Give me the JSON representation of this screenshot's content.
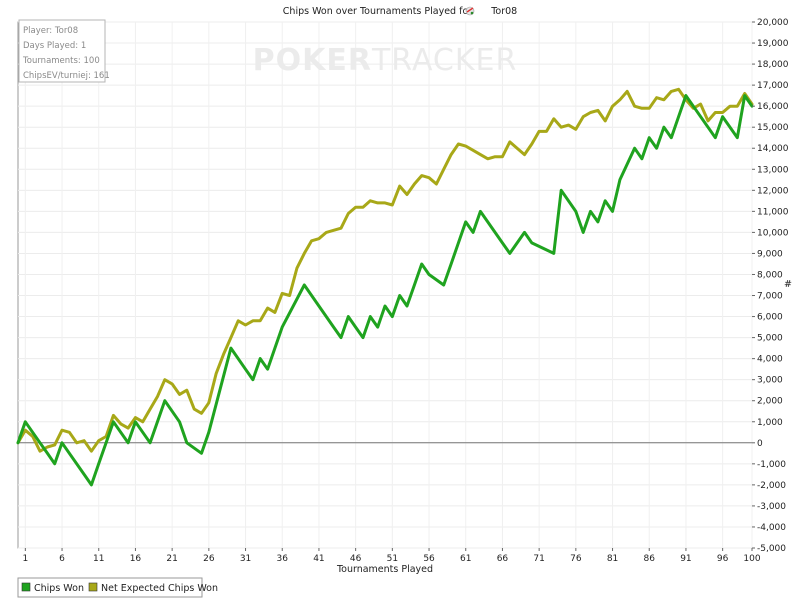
{
  "chart_data": {
    "type": "line",
    "title": "Chips Won over Tournaments Played for",
    "player_name": "Tor08",
    "watermark": {
      "bold": "POKER",
      "light": "TRACKER"
    },
    "xlabel": "Tournaments Played",
    "ylabel": "#",
    "xlim": [
      0,
      100
    ],
    "ylim": [
      -5000,
      20000
    ],
    "yticks": [
      -5000,
      -4000,
      -3000,
      -2000,
      -1000,
      0,
      1000,
      2000,
      3000,
      4000,
      5000,
      6000,
      7000,
      8000,
      9000,
      10000,
      11000,
      12000,
      13000,
      14000,
      15000,
      16000,
      17000,
      18000,
      19000,
      20000
    ],
    "ytick_labels": [
      "-5,000",
      "-4,000",
      "-3,000",
      "-2,000",
      "-1,000",
      "0",
      "1,000",
      "2,000",
      "3,000",
      "4,000",
      "5,000",
      "6,000",
      "7,000",
      "8,000",
      "9,000",
      "10,000",
      "11,000",
      "12,000",
      "13,000",
      "14,000",
      "15,000",
      "16,000",
      "17,000",
      "18,000",
      "19,000",
      "20,000"
    ],
    "xticks": [
      1,
      6,
      11,
      16,
      21,
      26,
      31,
      36,
      41,
      46,
      51,
      56,
      61,
      66,
      71,
      76,
      81,
      86,
      91,
      96,
      100
    ],
    "xtick_labels": [
      "1",
      "6",
      "11",
      "16",
      "21",
      "26",
      "31",
      "36",
      "41",
      "46",
      "51",
      "56",
      "61",
      "66",
      "71",
      "76",
      "81",
      "86",
      "91",
      "96",
      "100"
    ],
    "grid": true,
    "info_box": [
      "Player: Tor08",
      "Days Played: 1",
      "Tournaments: 100",
      "ChipsEV/turniej: 161"
    ],
    "legend": [
      "Chips Won",
      "Net Expected Chips Won"
    ],
    "series": [
      {
        "name": "Chips Won",
        "color": "#1fa31f",
        "x": [
          0,
          1,
          3,
          4,
          5,
          6,
          9,
          10,
          11,
          12,
          13,
          15,
          16,
          18,
          20,
          22,
          23,
          25,
          26,
          29,
          31,
          32,
          33,
          34,
          35,
          36,
          39,
          41,
          43,
          44,
          45,
          46,
          47,
          48,
          49,
          50,
          51,
          52,
          53,
          54,
          55,
          56,
          58,
          59,
          61,
          62,
          63,
          66,
          67,
          69,
          70,
          73,
          74,
          76,
          77,
          78,
          79,
          80,
          81,
          82,
          84,
          85,
          86,
          87,
          88,
          89,
          91,
          92,
          94,
          95,
          96,
          97,
          98,
          99,
          100
        ],
        "y": [
          0,
          1000,
          0,
          -500,
          -1000,
          0,
          -1500,
          -2000,
          -1000,
          0,
          1000,
          0,
          1000,
          0,
          2000,
          1000,
          0,
          -500,
          500,
          4500,
          3500,
          3000,
          4000,
          3500,
          4500,
          5500,
          7500,
          6500,
          5500,
          5000,
          6000,
          5500,
          5000,
          6000,
          5500,
          6500,
          6000,
          7000,
          6500,
          7500,
          8500,
          8000,
          7500,
          8500,
          10500,
          10000,
          11000,
          9500,
          9000,
          10000,
          9500,
          9000,
          12000,
          11000,
          10000,
          11000,
          10500,
          11500,
          11000,
          12500,
          14000,
          13500,
          14500,
          14000,
          15000,
          14500,
          16500,
          16000,
          15000,
          14500,
          15500,
          15000,
          14500,
          16500,
          16000
        ]
      },
      {
        "name": "Net Expected Chips Won",
        "color": "#a8a818",
        "x": [
          0,
          1,
          2,
          3,
          4,
          5,
          6,
          7,
          8,
          9,
          10,
          11,
          12,
          13,
          14,
          15,
          16,
          17,
          18,
          19,
          20,
          21,
          22,
          23,
          24,
          25,
          26,
          27,
          28,
          29,
          30,
          31,
          32,
          33,
          34,
          35,
          36,
          37,
          38,
          39,
          40,
          41,
          42,
          43,
          44,
          45,
          46,
          47,
          48,
          49,
          50,
          51,
          52,
          53,
          54,
          55,
          56,
          57,
          58,
          59,
          60,
          61,
          62,
          63,
          64,
          65,
          66,
          67,
          68,
          69,
          70,
          71,
          72,
          73,
          74,
          75,
          76,
          77,
          78,
          79,
          80,
          81,
          82,
          83,
          84,
          85,
          86,
          87,
          88,
          89,
          90,
          91,
          92,
          93,
          94,
          95,
          96,
          97,
          98,
          99,
          100
        ],
        "y": [
          0,
          600,
          300,
          -400,
          -200,
          -100,
          600,
          500,
          0,
          100,
          -400,
          100,
          300,
          1300,
          900,
          700,
          1200,
          1000,
          1600,
          2200,
          3000,
          2800,
          2300,
          2500,
          1600,
          1400,
          1900,
          3300,
          4200,
          5000,
          5800,
          5600,
          5800,
          5800,
          6400,
          6200,
          7100,
          7000,
          8300,
          9000,
          9600,
          9700,
          10000,
          10100,
          10200,
          10900,
          11200,
          11200,
          11500,
          11400,
          11400,
          11300,
          12200,
          11800,
          12300,
          12700,
          12600,
          12300,
          13000,
          13700,
          14200,
          14100,
          13900,
          13700,
          13500,
          13600,
          13600,
          14300,
          14000,
          13700,
          14200,
          14800,
          14800,
          15400,
          15000,
          15100,
          14900,
          15500,
          15700,
          15800,
          15300,
          16000,
          16300,
          16700,
          16000,
          15900,
          15900,
          16400,
          16300,
          16700,
          16800,
          16300,
          15900,
          16100,
          15300,
          15700,
          15700,
          16000,
          16000,
          16600,
          16100
        ]
      }
    ]
  }
}
